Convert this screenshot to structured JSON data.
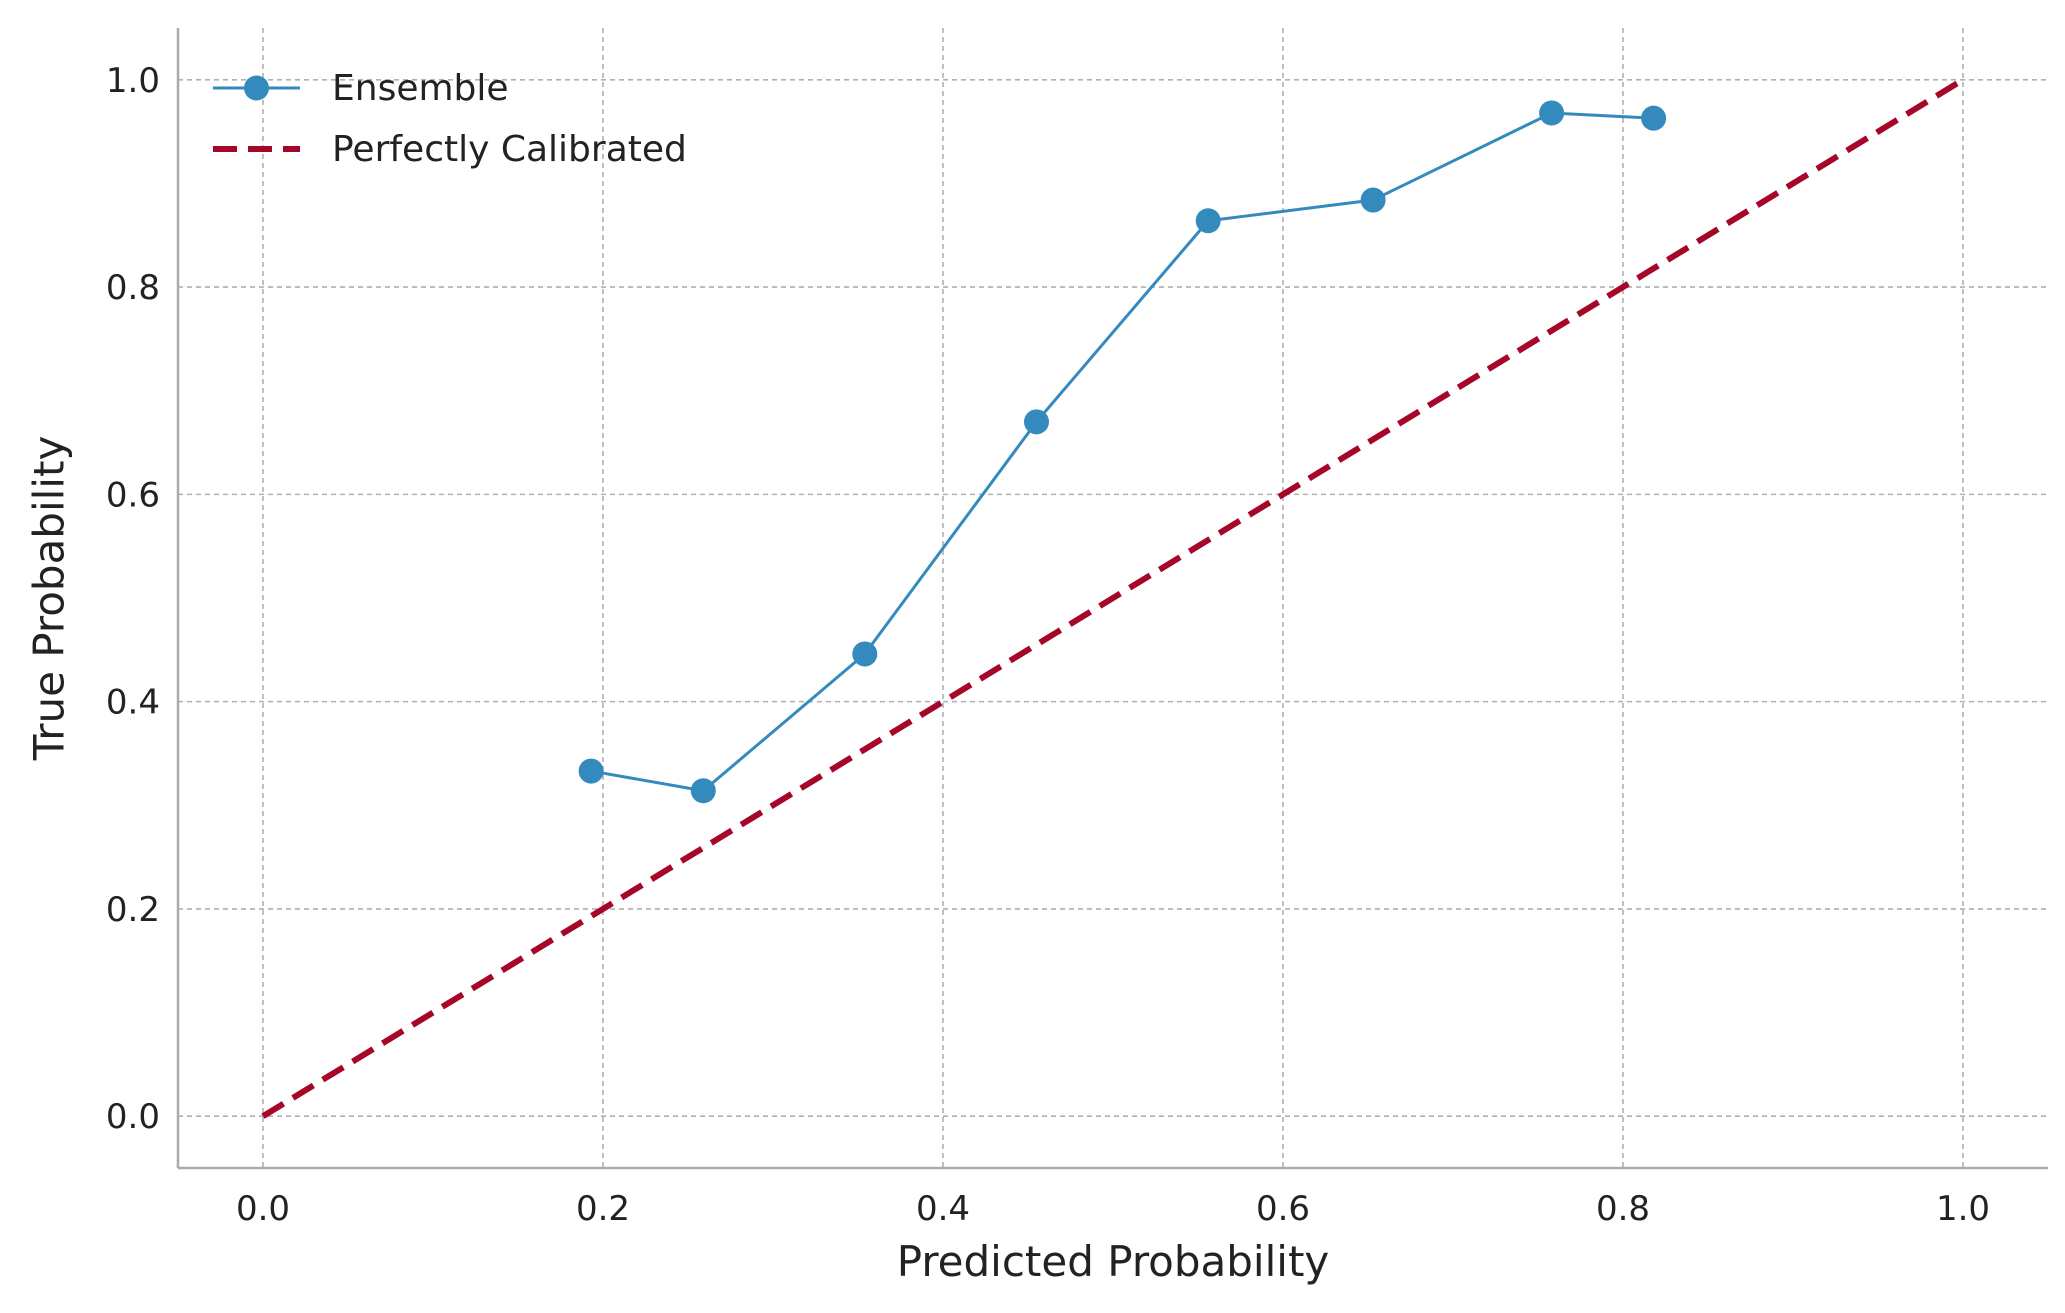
{
  "chart_data": {
    "type": "line",
    "title": "",
    "xlabel": "Predicted Probability",
    "ylabel": "True Probability",
    "xlim": [
      -0.05,
      1.05
    ],
    "ylim": [
      -0.05,
      1.05
    ],
    "xticks": [
      0.0,
      0.2,
      0.4,
      0.6,
      0.8,
      1.0
    ],
    "yticks": [
      0.0,
      0.2,
      0.4,
      0.6,
      0.8,
      1.0
    ],
    "xtick_labels": [
      "0.0",
      "0.2",
      "0.4",
      "0.6",
      "0.8",
      "1.0"
    ],
    "ytick_labels": [
      "0.0",
      "0.2",
      "0.4",
      "0.6",
      "0.8",
      "1.0"
    ],
    "grid": true,
    "legend_position": "top-left",
    "series": [
      {
        "name": "Ensemble",
        "style": "solid-with-markers",
        "color": "#348ABD",
        "x": [
          0.193,
          0.259,
          0.354,
          0.455,
          0.556,
          0.653,
          0.758,
          0.818
        ],
        "y": [
          0.333,
          0.314,
          0.446,
          0.67,
          0.864,
          0.884,
          0.968,
          0.963
        ]
      },
      {
        "name": "Perfectly Calibrated",
        "style": "dashed",
        "color": "#A60628",
        "x": [
          0.0,
          1.0
        ],
        "y": [
          0.0,
          1.0
        ]
      }
    ]
  }
}
